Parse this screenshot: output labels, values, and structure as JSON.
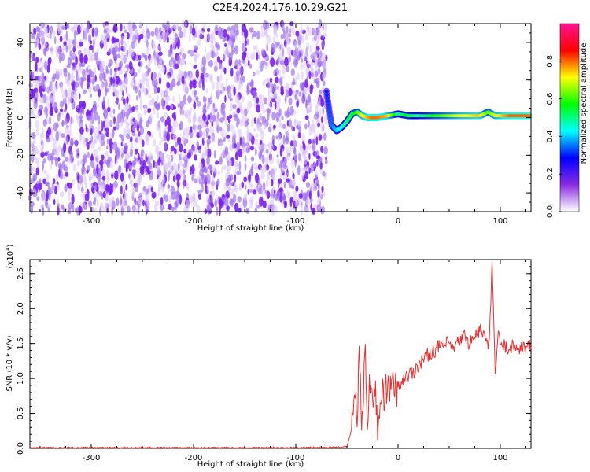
{
  "title": "C2E4.2024.176.10.29.G21",
  "chart_data": [
    {
      "type": "heatmap",
      "xlabel": "Height of straight line (km)",
      "ylabel": "Frequency (Hz)",
      "xlim": [
        -360,
        130
      ],
      "ylim": [
        -50,
        50
      ],
      "x_ticks": [
        -300,
        -200,
        -100,
        0,
        100
      ],
      "x_tick_labels": [
        "-300",
        "-200",
        "-100",
        "0",
        "100"
      ],
      "y_ticks": [
        -40,
        -20,
        0,
        20,
        40
      ],
      "y_tick_labels": [
        "-40",
        "-20",
        "0",
        "20",
        "40"
      ],
      "noise_region_x": [
        -360,
        -70
      ],
      "signal_trace": {
        "x": [
          -70,
          -65,
          -60,
          -55,
          -50,
          -45,
          -40,
          -35,
          -30,
          -25,
          -20,
          -10,
          0,
          10,
          20,
          40,
          60,
          80,
          88,
          95,
          110,
          130
        ],
        "freq_hz": [
          14,
          -4,
          -7,
          -5,
          -2,
          2,
          3,
          1,
          0,
          0,
          0,
          1,
          2,
          1,
          1,
          1,
          1,
          1,
          3,
          1,
          1,
          1
        ],
        "amplitude": [
          0.3,
          0.35,
          0.4,
          0.45,
          0.5,
          0.55,
          0.6,
          0.7,
          0.75,
          0.8,
          0.8,
          0.75,
          0.5,
          0.55,
          0.5,
          0.6,
          0.7,
          0.75,
          0.6,
          0.7,
          0.8,
          0.8
        ]
      },
      "colorbar": {
        "label": "Normalized spectral amplitude",
        "ticks": [
          0.0,
          0.2,
          0.4,
          0.6,
          0.8
        ],
        "tick_labels": [
          "0.0",
          "0.2",
          "0.4",
          "0.6",
          "0.8"
        ],
        "range": [
          0,
          1
        ],
        "colormap": [
          "#ffffff",
          "#8a2be2",
          "#0000ff",
          "#00ffff",
          "#00ff00",
          "#ffff00",
          "#ff0000",
          "#ff1493"
        ]
      }
    },
    {
      "type": "line",
      "xlabel": "Height of straight line (km)",
      "ylabel": "SNR (10 * v/v)",
      "y_multiplier": "(x10",
      "y_multiplier_exp": "4",
      "y_multiplier_close": ")",
      "xlim": [
        -360,
        130
      ],
      "ylim": [
        0,
        2.7
      ],
      "x_ticks": [
        -300,
        -200,
        -100,
        0,
        100
      ],
      "x_tick_labels": [
        "-300",
        "-200",
        "-100",
        "0",
        "100"
      ],
      "y_ticks": [
        0.0,
        0.5,
        1.0,
        1.5,
        2.0,
        2.5
      ],
      "y_tick_labels": [
        "0.0",
        "0.5",
        "1.0",
        "1.5",
        "2.0",
        "2.5"
      ],
      "color": "#e83030",
      "series": [
        {
          "x": [
            -360,
            -300,
            -200,
            -100,
            -50,
            -45,
            -42,
            -40,
            -38,
            -35,
            -32,
            -30,
            -28,
            -25,
            -22,
            -20,
            -15,
            -10,
            -5,
            0,
            5,
            10,
            15,
            20,
            30,
            40,
            50,
            55,
            60,
            65,
            70,
            75,
            80,
            85,
            88,
            90,
            92,
            95,
            98,
            100,
            105,
            110,
            120,
            130
          ],
          "y": [
            0.01,
            0.01,
            0.01,
            0.01,
            0.02,
            0.3,
            0.9,
            0.5,
            1.2,
            0.3,
            1.4,
            0.4,
            1.1,
            0.5,
            0.9,
            0.3,
            0.8,
            0.8,
            0.9,
            0.85,
            1.0,
            1.05,
            1.1,
            1.2,
            1.35,
            1.45,
            1.5,
            1.4,
            1.55,
            1.6,
            1.5,
            1.6,
            1.7,
            1.6,
            1.4,
            1.8,
            2.6,
            1.1,
            1.6,
            1.5,
            1.45,
            1.45,
            1.45,
            1.45
          ]
        }
      ]
    }
  ]
}
